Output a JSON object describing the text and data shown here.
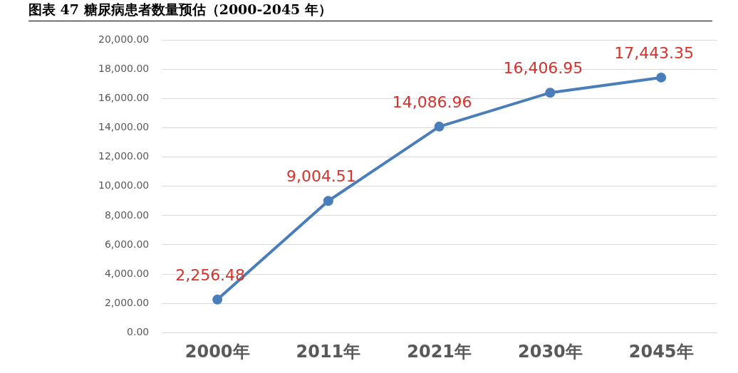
{
  "chart_data": {
    "type": "line",
    "title": "图表 47 糖尿病患者数量预估（2000-2045 年）",
    "categories": [
      "2000年",
      "2011年",
      "2021年",
      "2030年",
      "2045年"
    ],
    "series": [
      {
        "color": "#4a7ebb",
        "values": [
          2256.48,
          9004.51,
          14086.96,
          16406.95,
          17443.35
        ],
        "value_labels": [
          "2,256.48",
          "9,004.51",
          "14,086.96",
          "16,406.95",
          "17,443.35"
        ]
      }
    ],
    "ylim": [
      0,
      20000
    ],
    "yticks": [
      {
        "value": 0,
        "label": "0.00"
      },
      {
        "value": 2000,
        "label": "2,000.00"
      },
      {
        "value": 4000,
        "label": "4,000.00"
      },
      {
        "value": 6000,
        "label": "6,000.00"
      },
      {
        "value": 8000,
        "label": "8,000.00"
      },
      {
        "value": 10000,
        "label": "10,000.00"
      },
      {
        "value": 12000,
        "label": "12,000.00"
      },
      {
        "value": 14000,
        "label": "14,000.00"
      },
      {
        "value": 16000,
        "label": "16,000.00"
      },
      {
        "value": 18000,
        "label": "18,000.00"
      },
      {
        "value": 20000,
        "label": "20,000.00"
      }
    ],
    "grid": "y",
    "legend": false,
    "marker": "circle",
    "line_style": "solid"
  }
}
